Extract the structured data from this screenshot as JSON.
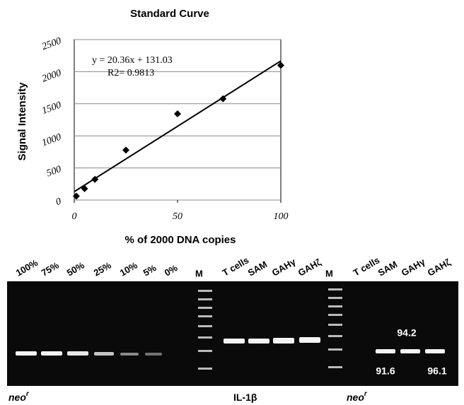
{
  "chart_data": {
    "type": "scatter",
    "title": "Standard Curve",
    "x_label": "% of 2000 DNA copies",
    "y_label": "Signal Intensity",
    "x": [
      1,
      5,
      10,
      25,
      50,
      72,
      100
    ],
    "values": [
      60,
      178,
      322,
      778,
      1344,
      1578,
      2100
    ],
    "color": "#000000",
    "xlim": [
      0,
      100
    ],
    "ylim": [
      0,
      2500
    ],
    "xticks": [
      0,
      50,
      100
    ],
    "yticks": [
      0,
      500,
      1000,
      1500,
      2000,
      2500
    ],
    "grid": true,
    "trendline": {
      "slope": 20.36,
      "intercept": 131.03,
      "label": "y = 20.36x + 131.03",
      "r2_label": "R2= 0.9813"
    }
  },
  "gel": {
    "lanes": [
      "100%",
      "75%",
      "50%",
      "25%",
      "10%",
      "5%",
      "0%",
      "M",
      "T cells",
      "SAM",
      "GAHγ",
      "GAHζ",
      "M",
      "T cells",
      "SAM",
      "GAHγ",
      "GAHζ"
    ],
    "band_labels": [
      "94.2",
      "91.6",
      "96.1"
    ],
    "markers": [
      {
        "text": "neo",
        "sup": "r"
      },
      {
        "text": "IL-1β"
      },
      {
        "text": "neo",
        "sup": "r"
      }
    ]
  }
}
